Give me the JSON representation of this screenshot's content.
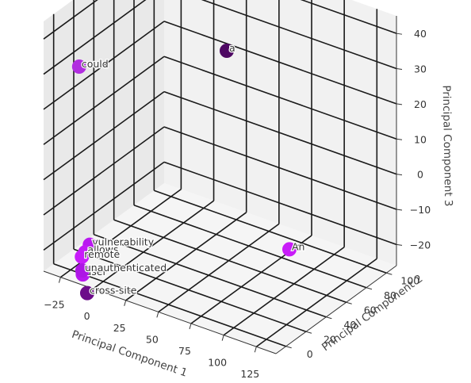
{
  "chart_data": {
    "type": "scatter",
    "projection": "3d",
    "xlabel": "Principal Component 1",
    "ylabel": "Principal Component 2",
    "zlabel": "Principal Component 3",
    "xticks": [
      "−25",
      "0",
      "25",
      "50",
      "75",
      "100",
      "125"
    ],
    "yticks": [
      "0",
      "20",
      "40",
      "60",
      "80",
      "100"
    ],
    "zticks": [
      "−20",
      "−10",
      "0",
      "10",
      "20",
      "30",
      "40"
    ],
    "xlim": [
      -38,
      140
    ],
    "ylim": [
      -10,
      110
    ],
    "zlim": [
      -26,
      45
    ],
    "grid": true,
    "points": [
      {
        "label": "could",
        "x": -30,
        "y": 15,
        "z": 28,
        "color": "#b12ee0"
      },
      {
        "label": "a",
        "x": 20,
        "y": 97,
        "z": 22,
        "color": "#4e0863"
      },
      {
        "label": "vulnerability",
        "x": -18,
        "y": 10,
        "z": -20,
        "color": "#b918f0"
      },
      {
        "label": "allows",
        "x": -20,
        "y": 8,
        "z": -22,
        "color": "#c21af5"
      },
      {
        "label": "remote",
        "x": -21,
        "y": 6,
        "z": -23,
        "color": "#c81cfa"
      },
      {
        "label": "unauthenticated",
        "x": -16,
        "y": 0,
        "z": -25,
        "color": "#ad16e5"
      },
      {
        "label": "user",
        "x": -18,
        "y": 3,
        "z": -27,
        "color": "#b818ef"
      },
      {
        "label": "cross-site",
        "x": -10,
        "y": -3,
        "z": -30,
        "color": "#6c0c8a"
      },
      {
        "label": "An",
        "x": 118,
        "y": 32,
        "z": -8,
        "color": "#c81cf8"
      }
    ]
  }
}
